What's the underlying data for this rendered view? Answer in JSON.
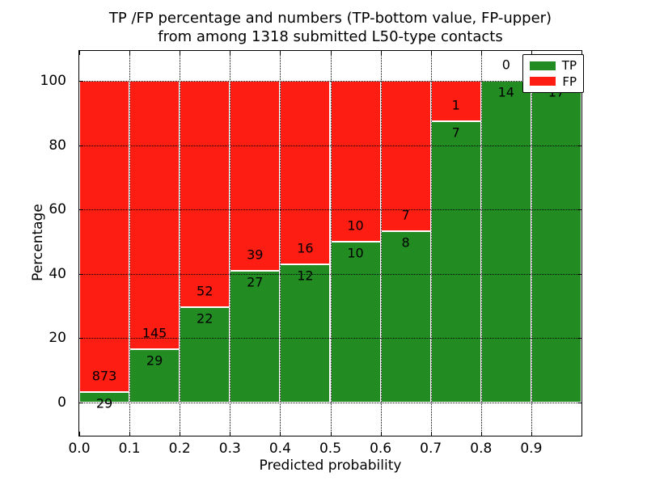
{
  "title": {
    "line1": "TP /FP percentage and numbers (TP-bottom value, FP-upper)",
    "line2": "from among 1318 submitted L50-type contacts"
  },
  "axes": {
    "x_label": "Predicted probability",
    "y_label": "Percentage",
    "x_tick_labels": [
      "0.0",
      "0.1",
      "0.2",
      "0.3",
      "0.4",
      "0.5",
      "0.6",
      "0.7",
      "0.8",
      "0.9"
    ],
    "y_tick_labels": [
      "0",
      "20",
      "40",
      "60",
      "80",
      "100"
    ],
    "y_tick_values": [
      0,
      20,
      40,
      60,
      80,
      100
    ]
  },
  "legend": {
    "items": [
      {
        "label": "TP",
        "color": "#228b22"
      },
      {
        "label": "FP",
        "color": "#fd1d13"
      }
    ]
  },
  "colors": {
    "tp_green": "#228b22",
    "fp_red": "#fd1d13",
    "frame": "#000000",
    "grid": "#000000",
    "background": "#ffffff",
    "text": "#000000"
  },
  "chart_data": {
    "type": "bar",
    "variant": "stacked-percentage",
    "title": "TP /FP percentage and numbers (TP-bottom value, FP-upper) from among 1318 submitted L50-type contacts",
    "xlabel": "Predicted probability",
    "ylabel": "Percentage",
    "xlim": [
      0.0,
      1.0
    ],
    "ylim": [
      -11,
      110
    ],
    "bin_width": 0.1,
    "grid": "dotted, both axes, drawn over bars",
    "legend_position": "upper-right",
    "categories": [
      "0.0-0.1",
      "0.1-0.2",
      "0.2-0.3",
      "0.3-0.4",
      "0.4-0.5",
      "0.5-0.6",
      "0.6-0.7",
      "0.7-0.8",
      "0.8-0.9",
      "0.9-1.0"
    ],
    "series": [
      {
        "name": "TP",
        "color": "#228b22",
        "values": [
          29,
          29,
          22,
          27,
          12,
          10,
          8,
          7,
          14,
          17
        ]
      },
      {
        "name": "FP",
        "color": "#fd1d13",
        "values": [
          873,
          145,
          52,
          39,
          16,
          10,
          7,
          1,
          0,
          0
        ]
      }
    ],
    "tp_percent_of_bin": [
      3.2,
      16.7,
      29.7,
      40.9,
      42.9,
      50.0,
      53.3,
      87.5,
      100.0,
      100.0
    ],
    "total_contacts": 1318
  }
}
